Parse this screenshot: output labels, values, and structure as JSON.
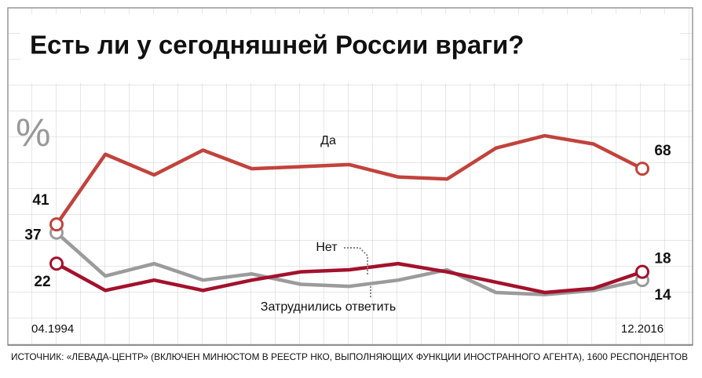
{
  "chart_data": {
    "type": "line",
    "title": "Есть ли у сегодняшней России враги?",
    "y_label": "%",
    "source": "ИСТОЧНИК: «ЛЕВАДА-ЦЕНТР» (ВКЛЮЧЕН МИНЮСТОМ В РЕЕСТР НКО, ВЫПОЛНЯЮЩИХ ФУНКЦИИ ИНОСТРАННОГО АГЕНТА), 1600 РЕСПОНДЕНТОВ",
    "categories": [
      "04.1994",
      null,
      null,
      null,
      null,
      null,
      null,
      null,
      null,
      null,
      null,
      null,
      "12.2016"
    ],
    "ylim": [
      0,
      100
    ],
    "series": [
      {
        "name": "Да",
        "color": "#c1433c",
        "values": [
          41,
          75,
          65,
          77,
          68,
          69,
          70,
          64,
          63,
          78,
          84,
          80,
          68
        ]
      },
      {
        "name": "Нет",
        "color": "#9b9b9b",
        "values": [
          37,
          16,
          22,
          14,
          17,
          12,
          11,
          14,
          19,
          8,
          7,
          9,
          14
        ]
      },
      {
        "name": "Затруднились ответить",
        "color": "#a3112c",
        "values": [
          22,
          9,
          14,
          9,
          14,
          18,
          19,
          22,
          18,
          13,
          8,
          10,
          18
        ]
      }
    ]
  }
}
